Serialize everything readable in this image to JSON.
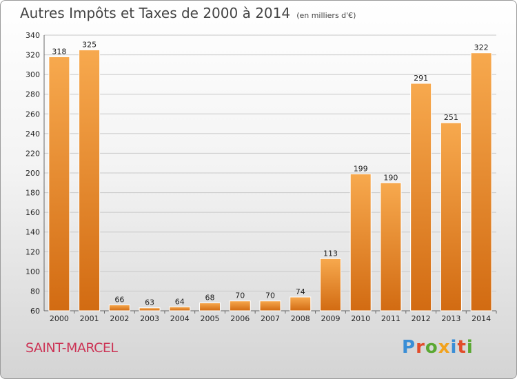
{
  "title": "Autres Impôts et Taxes de 2000 à 2014",
  "unit_label": "(en milliers d'€)",
  "place": "SAINT-MARCEL",
  "brand": "Proxiti",
  "brand_colors": [
    "#3a8ed6",
    "#e24c2a",
    "#5aa832",
    "#f2a21d",
    "#3a8ed6",
    "#e24c2a",
    "#5aa832"
  ],
  "colors": {
    "bar_light": "#f7a94e",
    "bar_dark": "#d26b12",
    "grid": "#c8c8c8"
  },
  "chart_data": {
    "type": "bar",
    "categories": [
      "2000",
      "2001",
      "2002",
      "2003",
      "2004",
      "2005",
      "2006",
      "2007",
      "2008",
      "2009",
      "2010",
      "2011",
      "2012",
      "2013",
      "2014"
    ],
    "values": [
      318,
      325,
      66,
      63,
      64,
      68,
      70,
      70,
      74,
      113,
      199,
      190,
      291,
      251,
      322
    ],
    "ylim": [
      60,
      340
    ],
    "yticks": [
      60,
      80,
      100,
      120,
      140,
      160,
      180,
      200,
      220,
      240,
      260,
      280,
      300,
      320,
      340
    ],
    "grid": true,
    "data_labels": true
  }
}
